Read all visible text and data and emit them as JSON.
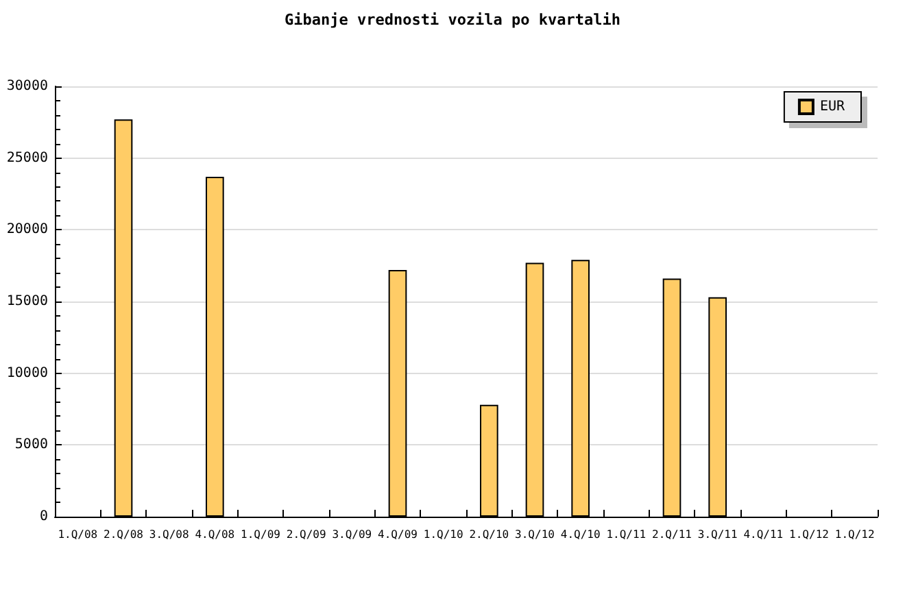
{
  "chart_data": {
    "type": "bar",
    "title": "Gibanje vrednosti vozila po kvartalih",
    "categories": [
      "1.Q/08",
      "2.Q/08",
      "3.Q/08",
      "4.Q/08",
      "1.Q/09",
      "2.Q/09",
      "3.Q/09",
      "4.Q/09",
      "1.Q/10",
      "2.Q/10",
      "3.Q/10",
      "4.Q/10",
      "1.Q/11",
      "2.Q/11",
      "3.Q/11",
      "4.Q/11",
      "1.Q/12",
      "1.Q/12"
    ],
    "series": [
      {
        "name": "EUR",
        "color": "#ffcc66",
        "values": [
          null,
          27700,
          null,
          23700,
          null,
          null,
          null,
          17200,
          null,
          7800,
          17700,
          17900,
          null,
          16600,
          15300,
          null,
          null,
          null
        ]
      }
    ],
    "ylim": [
      0,
      30000
    ],
    "yticks": [
      0,
      {
        "value": 1000,
        "label": null
      },
      {
        "value": 2000,
        "label": null
      },
      {
        "value": 3000,
        "label": null
      },
      {
        "value": 4000,
        "label": null
      },
      5000,
      {
        "value": 6000,
        "label": null
      },
      {
        "value": 7000,
        "label": null
      },
      {
        "value": 8000,
        "label": null
      },
      {
        "value": 9000,
        "label": null
      },
      10000,
      {
        "value": 11000,
        "label": null
      },
      {
        "value": 12000,
        "label": null
      },
      {
        "value": 13000,
        "label": null
      },
      {
        "value": 14000,
        "label": null
      },
      15000,
      {
        "value": 16000,
        "label": null
      },
      {
        "value": 17000,
        "label": null
      },
      {
        "value": 18000,
        "label": null
      },
      {
        "value": 19000,
        "label": null
      },
      20000,
      {
        "value": 21000,
        "label": null
      },
      {
        "value": 22000,
        "label": null
      },
      {
        "value": 23000,
        "label": null
      },
      {
        "value": 24000,
        "label": null
      },
      25000,
      {
        "value": 26000,
        "label": null
      },
      {
        "value": 27000,
        "label": null
      },
      {
        "value": 28000,
        "label": null
      },
      {
        "value": 29000,
        "label": null
      },
      30000
    ],
    "grid": "y",
    "legend": "top right"
  }
}
